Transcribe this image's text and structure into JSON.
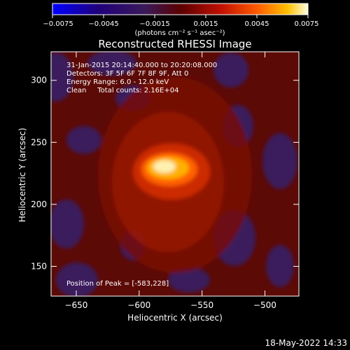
{
  "chart_data": {
    "type": "heatmap",
    "title": "Reconstructed RHESSI Image",
    "xlabel": "Heliocentric X (arcsec)",
    "ylabel": "Heliocentric Y (arcsec)",
    "x_ticks": [
      -650,
      -600,
      -550,
      -500
    ],
    "y_ticks": [
      150,
      200,
      250,
      300
    ],
    "xlim": [
      -670,
      -473
    ],
    "ylim": [
      126,
      323
    ],
    "peak": {
      "x": -583,
      "y": 228
    },
    "colorbar": {
      "label": "(photons cm⁻² s⁻¹ asec⁻²)",
      "range": [
        -0.0075,
        0.0075
      ],
      "tick_labels": [
        "-0.0075",
        "-0.0045",
        "-0.0015",
        "0.0015",
        "0.0045",
        "0.0075"
      ],
      "tick_values": [
        -0.0075,
        -0.0045,
        -0.0015,
        0.0015,
        0.0045,
        0.0075
      ],
      "colors": [
        "#0000ff",
        "#20007a",
        "#3a1a5a",
        "#6a0000",
        "#c01000",
        "#ff5a00",
        "#ffc000",
        "#ffffe0"
      ]
    },
    "annotations": [
      "31-Jan-2015 20:14:40.000 to 20:20:08.000",
      "Detectors: 3F 5F 6F 7F 8F 9F, Att 0",
      "Energy Range: 6.0 - 12.0 keV",
      "Clean     Total counts: 2.16E+04",
      "Position of Peak = [-583,228]"
    ]
  },
  "footer_timestamp": "18-May-2022 14:33"
}
